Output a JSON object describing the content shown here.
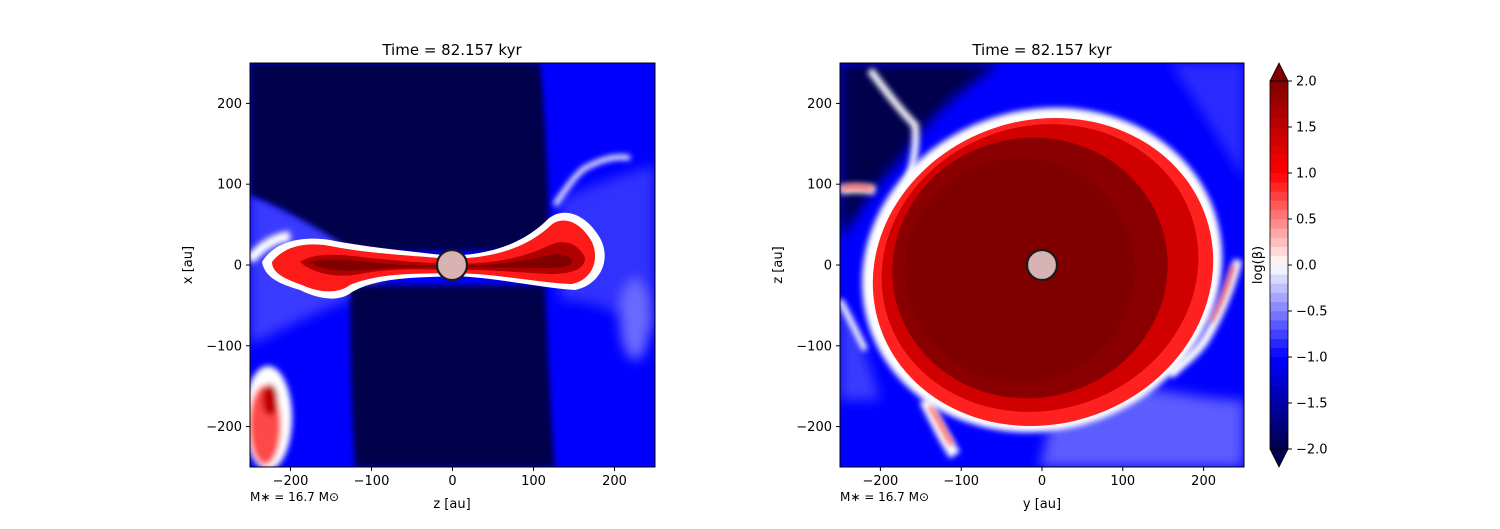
{
  "chart_data": [
    {
      "type": "heatmap",
      "title": "Time = 82.157 kyr",
      "xlabel": "z [au]",
      "ylabel": "x [au]",
      "xlim": [
        -250,
        250
      ],
      "ylim": [
        -250,
        250
      ],
      "xticks": [
        -200,
        -100,
        0,
        100,
        200
      ],
      "yticks": [
        -200,
        -100,
        0,
        100,
        200
      ],
      "annotation": "M∗ = 16.7 M⊙",
      "view": "edge-on",
      "star_radius_au": 25
    },
    {
      "type": "heatmap",
      "title": "Time = 82.157 kyr",
      "xlabel": "y [au]",
      "ylabel": "z [au]",
      "xlim": [
        -250,
        250
      ],
      "ylim": [
        -250,
        250
      ],
      "xticks": [
        -200,
        -100,
        0,
        100,
        200
      ],
      "yticks": [
        -200,
        -100,
        0,
        100,
        200
      ],
      "annotation": "M∗ = 16.7 M⊙",
      "view": "face-on",
      "star_radius_au": 25
    }
  ],
  "colorbar": {
    "label": "log(β)",
    "min": -2.0,
    "max": 2.0,
    "ticks": [
      -2.0,
      -1.5,
      -1.0,
      -0.5,
      0.0,
      0.5,
      1.0,
      1.5,
      2.0
    ],
    "tick_labels": [
      "−2.0",
      "−1.5",
      "−1.0",
      "−0.5",
      "0.0",
      "0.5",
      "1.0",
      "1.5",
      "2.0"
    ],
    "colormap": "seismic",
    "extend": "both"
  },
  "colors": {
    "deep_blue": "#00004c",
    "blue": "#0000ff",
    "white": "#ffffff",
    "red": "#ff0000",
    "dark_red": "#800000",
    "star_fill": "#d7b3b3"
  }
}
